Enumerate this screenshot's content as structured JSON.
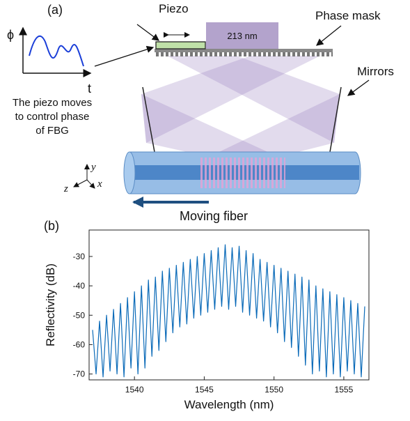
{
  "diagram": {
    "panel_a": "(a)",
    "piezo": "Piezo",
    "mask_width": "213 nm",
    "phase_mask": "Phase mask",
    "mirrors": "Mirrors",
    "phi": "ϕ",
    "t": "t",
    "caption": [
      "The piezo moves",
      "to control phase",
      "of FBG"
    ],
    "axis_y": "y",
    "axis_z": "z",
    "axis_x": "x",
    "moving": "Moving fiber",
    "panel_b": "(b)"
  },
  "chart_data": {
    "type": "line",
    "xlabel": "Wavelength (nm)",
    "ylabel": "Reflectivity (dB)",
    "xlim": [
      1536.75,
      1556.8
    ],
    "ylim": [
      -72,
      -21
    ],
    "xticks": [
      1540,
      1545,
      1550,
      1555
    ],
    "yticks": [
      -70,
      -60,
      -50,
      -40,
      -30
    ],
    "x": [
      1537,
      1537.25,
      1537.5,
      1537.75,
      1538,
      1538.25,
      1538.5,
      1538.75,
      1539,
      1539.25,
      1539.5,
      1539.75,
      1540,
      1540.25,
      1540.5,
      1540.75,
      1541,
      1541.25,
      1541.5,
      1541.75,
      1542,
      1542.25,
      1542.5,
      1542.75,
      1543,
      1543.25,
      1543.5,
      1543.75,
      1544,
      1544.25,
      1544.5,
      1544.75,
      1545,
      1545.25,
      1545.5,
      1545.75,
      1546,
      1546.25,
      1546.5,
      1546.75,
      1547,
      1547.25,
      1547.5,
      1547.75,
      1548,
      1548.25,
      1548.5,
      1548.75,
      1549,
      1549.25,
      1549.5,
      1549.75,
      1550,
      1550.25,
      1550.5,
      1550.75,
      1551,
      1551.25,
      1551.5,
      1551.75,
      1552,
      1552.25,
      1552.5,
      1552.75,
      1553,
      1553.25,
      1553.5,
      1553.75,
      1554,
      1554.25,
      1554.5,
      1554.75,
      1555,
      1555.25,
      1555.5,
      1555.75,
      1556,
      1556.25,
      1556.5
    ],
    "series": [
      {
        "color": "#0a6ab8",
        "values": [
          -55,
          -70,
          -52,
          -71,
          -50,
          -69,
          -48,
          -70,
          -46,
          -71,
          -44,
          -68,
          -42,
          -70,
          -40,
          -68,
          -38,
          -64,
          -37,
          -62,
          -35,
          -59,
          -34,
          -56,
          -33,
          -54,
          -32,
          -53,
          -31,
          -51,
          -30,
          -50,
          -29,
          -49,
          -28,
          -48,
          -27,
          -47,
          -26,
          -48,
          -27,
          -47,
          -26.5,
          -49,
          -28,
          -50,
          -29,
          -51,
          -31,
          -52,
          -32,
          -54,
          -33,
          -56,
          -34,
          -59,
          -35,
          -61,
          -36,
          -64,
          -37,
          -67,
          -38,
          -70,
          -40,
          -69,
          -41,
          -71,
          -42,
          -70,
          -43,
          -71,
          -44,
          -69,
          -45,
          -70,
          -46,
          -71,
          -47
        ]
      }
    ]
  }
}
